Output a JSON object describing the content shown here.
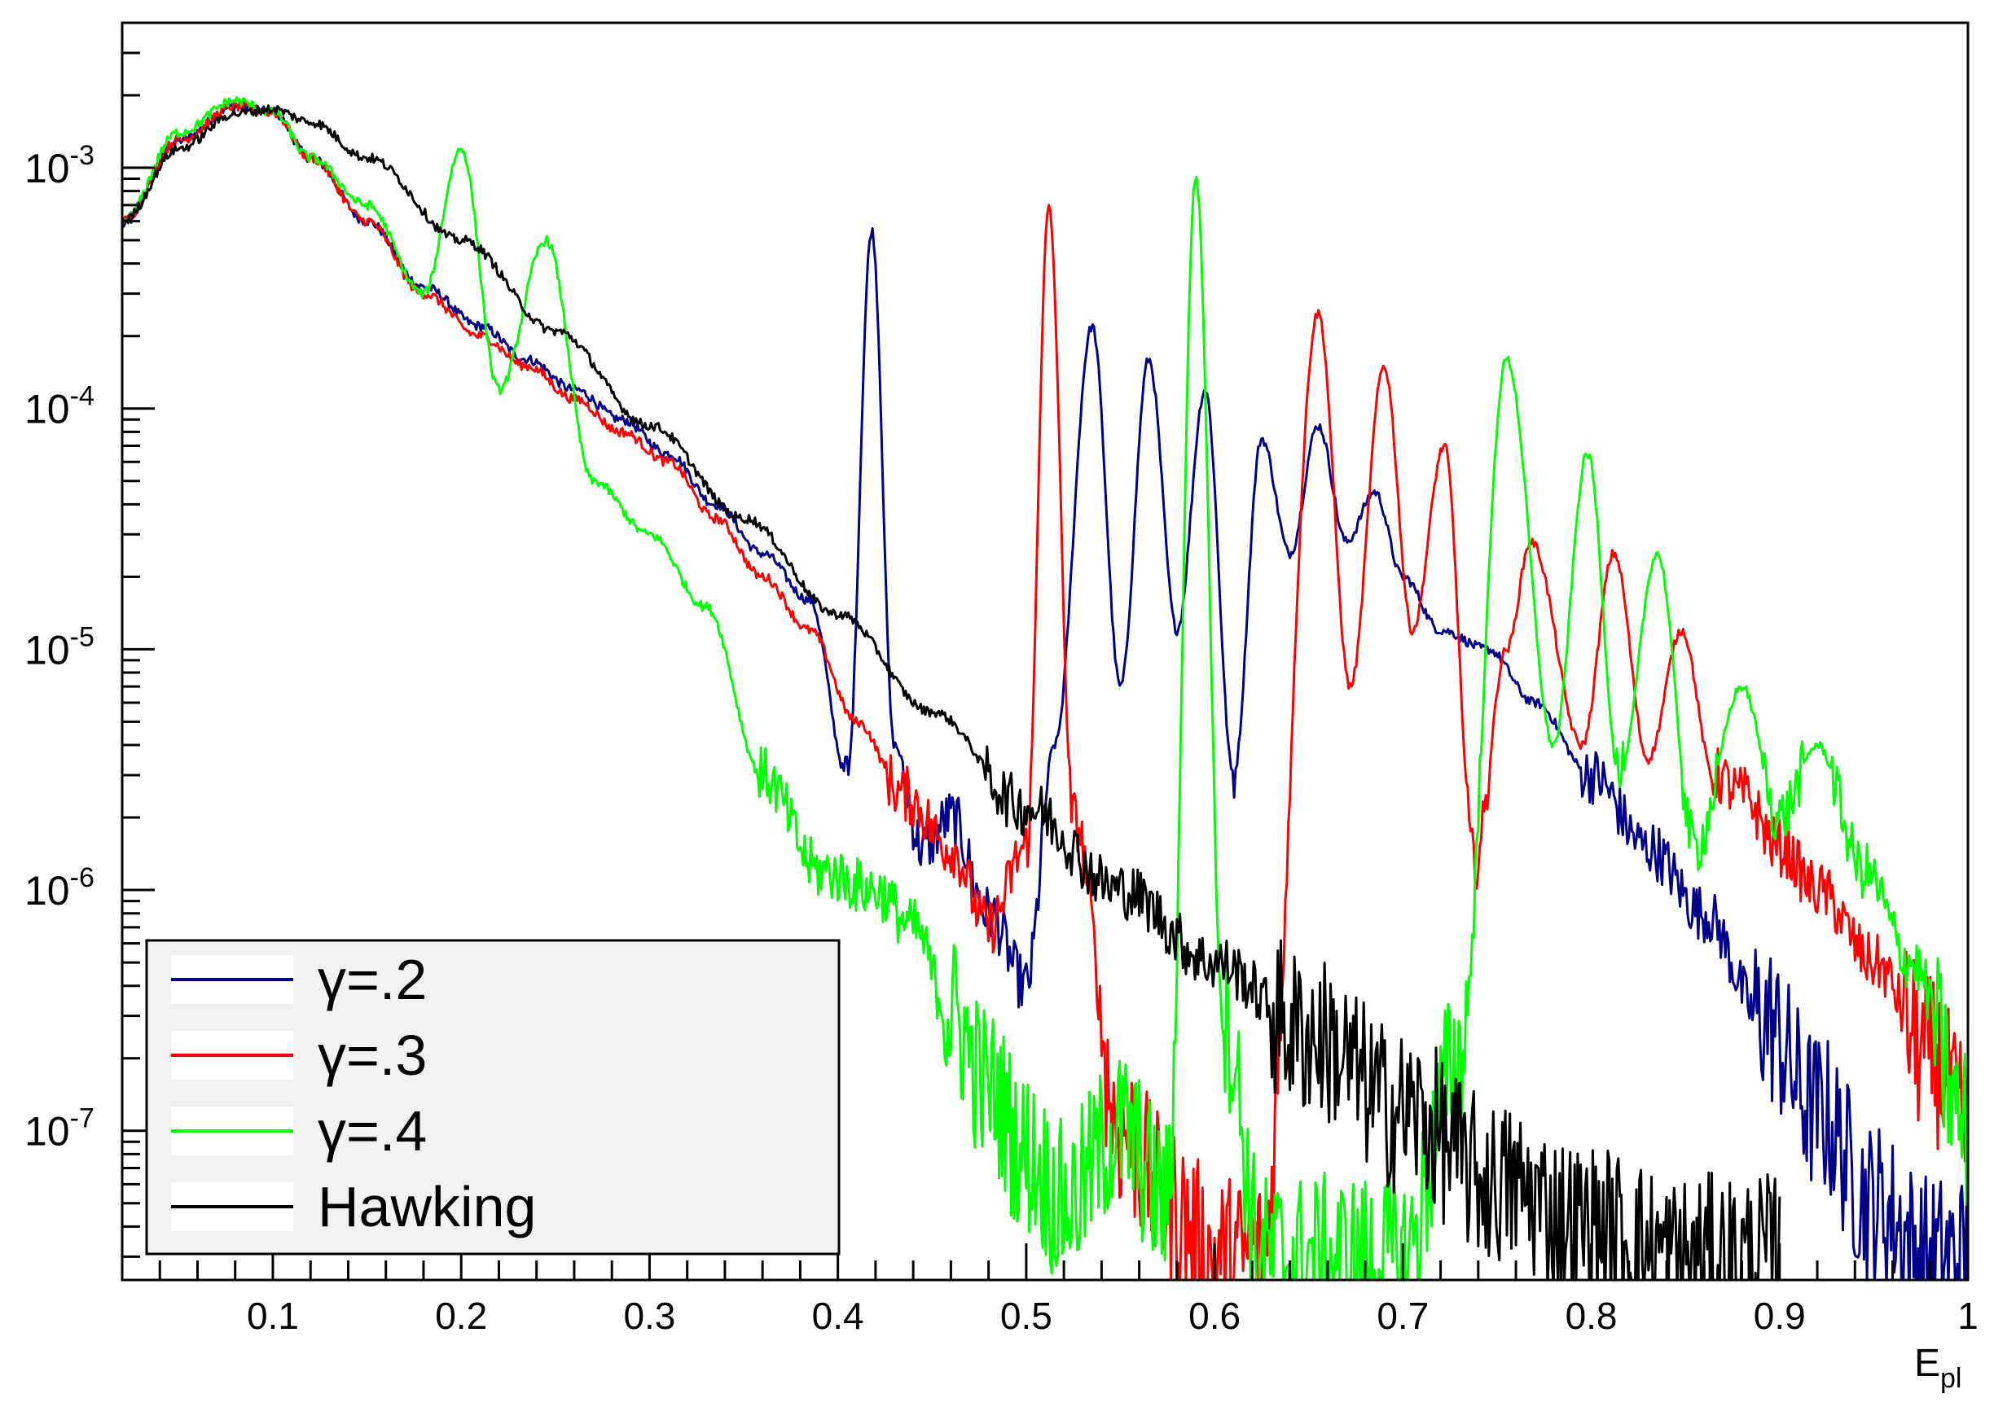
{
  "chart_data": {
    "type": "line",
    "title": "",
    "xlabel": "E",
    "xlabel_sub": "pl",
    "ylabel": "",
    "xlim": [
      0.02,
      1.0
    ],
    "ylim": [
      2.4e-08,
      0.004
    ],
    "yscale": "log",
    "grid": false,
    "legend_position": "bottom-left",
    "xticks": [
      {
        "v": 0.1,
        "label": "0.1"
      },
      {
        "v": 0.2,
        "label": "0.2"
      },
      {
        "v": 0.3,
        "label": "0.3"
      },
      {
        "v": 0.4,
        "label": "0.4"
      },
      {
        "v": 0.5,
        "label": "0.5"
      },
      {
        "v": 0.6,
        "label": "0.6"
      },
      {
        "v": 0.7,
        "label": "0.7"
      },
      {
        "v": 0.8,
        "label": "0.8"
      },
      {
        "v": 0.9,
        "label": "0.9"
      },
      {
        "v": 1.0,
        "label": "1"
      }
    ],
    "yticks": [
      {
        "exp": -3,
        "label_base": "10",
        "label_exp": "-3"
      },
      {
        "exp": -4,
        "label_base": "10",
        "label_exp": "-4"
      },
      {
        "exp": -5,
        "label_base": "10",
        "label_exp": "-5"
      },
      {
        "exp": -6,
        "label_base": "10",
        "label_exp": "-6"
      },
      {
        "exp": -7,
        "label_base": "10",
        "label_exp": "-7"
      }
    ],
    "series": [
      {
        "name": "γ=.2",
        "color": "#00008b",
        "x": [
          0.02,
          0.05,
          0.08,
          0.1,
          0.12,
          0.15,
          0.18,
          0.21,
          0.235,
          0.26,
          0.285,
          0.31,
          0.335,
          0.36,
          0.385,
          0.405,
          0.418,
          0.43,
          0.445,
          0.46,
          0.48,
          0.5,
          0.515,
          0.535,
          0.55,
          0.565,
          0.58,
          0.595,
          0.61,
          0.625,
          0.64,
          0.655,
          0.67,
          0.685,
          0.7,
          0.72,
          0.745,
          0.77,
          0.8,
          0.83,
          0.86,
          0.89,
          0.92,
          0.95,
          0.98,
          1.0
        ],
        "values": [
          0.00058,
          0.0013,
          0.0018,
          0.0017,
          0.0011,
          0.0006,
          0.00032,
          0.00022,
          0.00016,
          0.00012,
          9e-05,
          6.5e-05,
          4e-05,
          2.5e-05,
          1.6e-05,
          3e-06,
          0.00055,
          4e-06,
          1.5e-06,
          2e-06,
          8e-07,
          4e-07,
          4e-06,
          0.00022,
          7e-06,
          0.00016,
          1.2e-05,
          0.00012,
          3e-06,
          7.5e-05,
          2.5e-05,
          8.5e-05,
          2.8e-05,
          4.5e-05,
          2e-05,
          1.2e-05,
          1e-05,
          6e-06,
          3e-06,
          1.5e-06,
          8e-07,
          3e-07,
          1.2e-07,
          5e-08,
          3e-08,
          3e-08
        ]
      },
      {
        "name": "γ=.3",
        "color": "#ff0000",
        "x": [
          0.02,
          0.05,
          0.08,
          0.1,
          0.12,
          0.15,
          0.18,
          0.21,
          0.235,
          0.26,
          0.285,
          0.31,
          0.335,
          0.36,
          0.385,
          0.41,
          0.435,
          0.46,
          0.48,
          0.5,
          0.512,
          0.525,
          0.55,
          0.575,
          0.6,
          0.625,
          0.655,
          0.672,
          0.69,
          0.705,
          0.722,
          0.738,
          0.755,
          0.768,
          0.795,
          0.812,
          0.83,
          0.848,
          0.865,
          0.88,
          0.9,
          0.92,
          0.95,
          0.98,
          1.0
        ],
        "values": [
          0.0006,
          0.0013,
          0.0018,
          0.0017,
          0.0011,
          0.0006,
          0.0003,
          0.0002,
          0.00015,
          0.00011,
          8e-05,
          6e-05,
          3.5e-05,
          2e-05,
          1.2e-05,
          5e-06,
          2.5e-06,
          1.5e-06,
          7e-07,
          1.5e-06,
          0.00068,
          2e-06,
          1e-07,
          5e-08,
          3e-08,
          3e-08,
          0.00025,
          7e-06,
          0.00015,
          1.2e-05,
          7e-05,
          1.3e-06,
          1e-05,
          2.8e-05,
          4e-06,
          2.5e-05,
          3.5e-06,
          1.2e-05,
          3e-06,
          2.5e-06,
          1.5e-06,
          1e-06,
          5e-07,
          2e-07,
          1e-07
        ]
      },
      {
        "name": "γ=.4",
        "color": "#00ff00",
        "x": [
          0.02,
          0.05,
          0.08,
          0.1,
          0.12,
          0.15,
          0.18,
          0.2,
          0.22,
          0.245,
          0.27,
          0.3,
          0.33,
          0.36,
          0.39,
          0.42,
          0.44,
          0.46,
          0.48,
          0.5,
          0.52,
          0.55,
          0.575,
          0.59,
          0.605,
          0.625,
          0.65,
          0.7,
          0.73,
          0.755,
          0.78,
          0.798,
          0.815,
          0.835,
          0.855,
          0.88,
          0.9,
          0.92,
          0.945,
          0.97,
          1.0
        ],
        "values": [
          0.0006,
          0.0014,
          0.0019,
          0.0017,
          0.0011,
          0.0007,
          0.0003,
          0.0012,
          0.00012,
          0.0005,
          5e-05,
          3e-05,
          1.5e-05,
          3e-06,
          1.2e-06,
          1e-06,
          7e-07,
          3e-07,
          1.5e-07,
          8e-08,
          5e-08,
          1e-07,
          5e-08,
          0.00092,
          3e-07,
          3e-08,
          3e-08,
          3e-08,
          2e-07,
          0.00016,
          4e-06,
          6.5e-05,
          3e-06,
          2.5e-05,
          1.5e-06,
          7e-06,
          2e-06,
          4e-06,
          1.2e-06,
          5e-07,
          1e-07
        ]
      },
      {
        "name": "Hawking",
        "color": "#000000",
        "x": [
          0.02,
          0.05,
          0.08,
          0.1,
          0.12,
          0.15,
          0.2,
          0.25,
          0.3,
          0.35,
          0.4,
          0.45,
          0.5,
          0.55,
          0.6,
          0.65,
          0.7,
          0.75,
          0.8,
          0.85,
          0.9
        ],
        "values": [
          0.0006,
          0.0012,
          0.00168,
          0.00175,
          0.00155,
          0.0011,
          0.0005,
          0.00021,
          8.5e-05,
          3.5e-05,
          1.4e-05,
          5.5e-06,
          2.2e-06,
          1e-06,
          5e-07,
          2.5e-07,
          1.2e-07,
          6e-08,
          4e-08,
          3e-08,
          3e-08
        ]
      }
    ]
  }
}
